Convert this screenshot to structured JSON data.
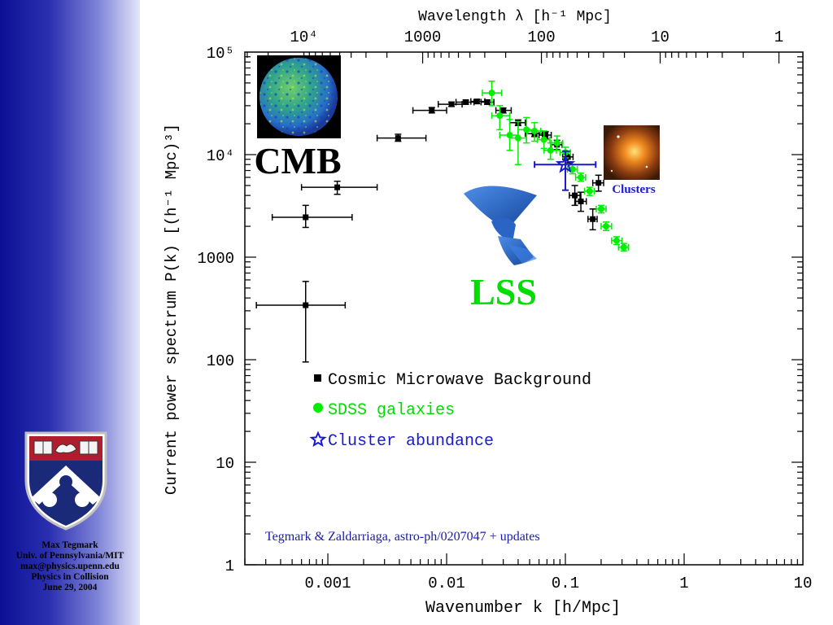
{
  "sidebar": {
    "footer_lines": [
      "Max Tegmark",
      "Univ. of Pennsylvania/MIT",
      "max@physics.upenn.edu",
      "Physics in Collision",
      "June 29, 2004"
    ]
  },
  "chart_data": {
    "type": "scatter",
    "xlabel": "Wavenumber k [h/Mpc]",
    "ylabel": "Current power spectrum P(k) [(h⁻¹ Mpc)³]",
    "top_xlabel": "Wavelength λ [h⁻¹ Mpc]",
    "xscale": "log",
    "yscale": "log",
    "xlim": [
      0.0002,
      10
    ],
    "ylim": [
      1,
      100000
    ],
    "x_ticks": [
      {
        "value": 0.001,
        "label": "0.001"
      },
      {
        "value": 0.01,
        "label": "0.01"
      },
      {
        "value": 0.1,
        "label": "0.1"
      },
      {
        "value": 1,
        "label": "1"
      },
      {
        "value": 10,
        "label": "10"
      }
    ],
    "y_ticks": [
      {
        "value": 1,
        "label": "1"
      },
      {
        "value": 10,
        "label": "10"
      },
      {
        "value": 100,
        "label": "100"
      },
      {
        "value": 1000,
        "label": "1000"
      },
      {
        "value": 10000,
        "label": "10⁴"
      },
      {
        "value": 100000,
        "label": "10⁵"
      }
    ],
    "top_ticks": [
      {
        "k": 0.000628,
        "label": "10⁴"
      },
      {
        "k": 0.00628,
        "label": "1000"
      },
      {
        "k": 0.0628,
        "label": "100"
      },
      {
        "k": 0.628,
        "label": "10"
      },
      {
        "k": 6.28,
        "label": "1"
      }
    ],
    "series": [
      {
        "name": "Cosmic Microwave Background",
        "color": "#000000",
        "marker": "square",
        "points": [
          {
            "x": 0.00065,
            "y": 340,
            "xlo": 0.00025,
            "xhi": 0.0014,
            "ylo": 95,
            "yhi": 580
          },
          {
            "x": 0.00065,
            "y": 2450,
            "xlo": 0.00034,
            "xhi": 0.0016,
            "ylo": 1950,
            "yhi": 3200
          },
          {
            "x": 0.0012,
            "y": 4800,
            "xlo": 0.0006,
            "xhi": 0.0026,
            "ylo": 4100,
            "yhi": 5500
          },
          {
            "x": 0.0039,
            "y": 14500,
            "xlo": 0.0026,
            "xhi": 0.0067,
            "ylo": 13500,
            "yhi": 15800
          },
          {
            "x": 0.0075,
            "y": 27000,
            "xlo": 0.0052,
            "xhi": 0.01,
            "ylo": 25500,
            "yhi": 28800
          },
          {
            "x": 0.011,
            "y": 31000,
            "xlo": 0.0085,
            "xhi": 0.0135,
            "ylo": 29500,
            "yhi": 32500
          },
          {
            "x": 0.0145,
            "y": 32500,
            "xlo": 0.012,
            "xhi": 0.017,
            "ylo": 31000,
            "yhi": 34000
          },
          {
            "x": 0.018,
            "y": 33000,
            "xlo": 0.016,
            "xhi": 0.021,
            "ylo": 31500,
            "yhi": 34500
          },
          {
            "x": 0.022,
            "y": 32500,
            "xlo": 0.0195,
            "xhi": 0.025,
            "ylo": 31000,
            "yhi": 34000
          },
          {
            "x": 0.03,
            "y": 27000,
            "xlo": 0.026,
            "xhi": 0.035,
            "ylo": 25500,
            "yhi": 28500
          },
          {
            "x": 0.04,
            "y": 20500,
            "xlo": 0.034,
            "xhi": 0.046,
            "ylo": 19200,
            "yhi": 21800
          },
          {
            "x": 0.055,
            "y": 16000,
            "xlo": 0.046,
            "xhi": 0.064,
            "ylo": 15000,
            "yhi": 17000
          },
          {
            "x": 0.068,
            "y": 15500,
            "xlo": 0.06,
            "xhi": 0.076,
            "ylo": 14300,
            "yhi": 16700
          },
          {
            "x": 0.085,
            "y": 12500,
            "xlo": 0.076,
            "xhi": 0.094,
            "ylo": 11200,
            "yhi": 13800
          },
          {
            "x": 0.105,
            "y": 9500,
            "xlo": 0.095,
            "xhi": 0.116,
            "ylo": 8300,
            "yhi": 10800
          },
          {
            "x": 0.12,
            "y": 4000,
            "xlo": 0.108,
            "xhi": 0.133,
            "ylo": 3200,
            "yhi": 5000
          },
          {
            "x": 0.135,
            "y": 3500,
            "xlo": 0.122,
            "xhi": 0.15,
            "ylo": 2800,
            "yhi": 4300
          },
          {
            "x": 0.17,
            "y": 2350,
            "xlo": 0.155,
            "xhi": 0.185,
            "ylo": 1850,
            "yhi": 2950
          },
          {
            "x": 0.19,
            "y": 5300,
            "xlo": 0.17,
            "xhi": 0.21,
            "ylo": 4400,
            "yhi": 6300
          }
        ]
      },
      {
        "name": "SDSS galaxies",
        "color": "#00ee00",
        "marker": "circle",
        "points": [
          {
            "x": 0.024,
            "y": 40000,
            "xlo": 0.02,
            "xhi": 0.029,
            "ylo": 30000,
            "yhi": 52000
          },
          {
            "x": 0.028,
            "y": 24000,
            "xlo": 0.024,
            "xhi": 0.034,
            "ylo": 17500,
            "yhi": 30000
          },
          {
            "x": 0.034,
            "y": 15500,
            "xlo": 0.028,
            "xhi": 0.04,
            "ylo": 11000,
            "yhi": 22000
          },
          {
            "x": 0.04,
            "y": 14500,
            "xlo": 0.034,
            "xhi": 0.047,
            "ylo": 8000,
            "yhi": 21000
          },
          {
            "x": 0.047,
            "y": 17500,
            "xlo": 0.04,
            "xhi": 0.055,
            "ylo": 13000,
            "yhi": 23000
          },
          {
            "x": 0.055,
            "y": 17000,
            "xlo": 0.048,
            "xhi": 0.062,
            "ylo": 13500,
            "yhi": 20500
          },
          {
            "x": 0.066,
            "y": 14000,
            "xlo": 0.058,
            "xhi": 0.074,
            "ylo": 11500,
            "yhi": 17000
          },
          {
            "x": 0.075,
            "y": 11000,
            "xlo": 0.066,
            "xhi": 0.084,
            "ylo": 9000,
            "yhi": 13000
          },
          {
            "x": 0.085,
            "y": 13000,
            "xlo": 0.076,
            "xhi": 0.095,
            "ylo": 11000,
            "yhi": 15200
          },
          {
            "x": 0.1,
            "y": 10500,
            "xlo": 0.09,
            "xhi": 0.11,
            "ylo": 9300,
            "yhi": 11800
          },
          {
            "x": 0.115,
            "y": 7200,
            "xlo": 0.104,
            "xhi": 0.126,
            "ylo": 6500,
            "yhi": 8000
          },
          {
            "x": 0.135,
            "y": 6000,
            "xlo": 0.122,
            "xhi": 0.148,
            "ylo": 5500,
            "yhi": 6600
          },
          {
            "x": 0.16,
            "y": 4400,
            "xlo": 0.145,
            "xhi": 0.175,
            "ylo": 4000,
            "yhi": 4800
          },
          {
            "x": 0.2,
            "y": 2950,
            "xlo": 0.182,
            "xhi": 0.22,
            "ylo": 2700,
            "yhi": 3200
          },
          {
            "x": 0.22,
            "y": 2000,
            "xlo": 0.2,
            "xhi": 0.245,
            "ylo": 1820,
            "yhi": 2200
          },
          {
            "x": 0.27,
            "y": 1450,
            "xlo": 0.245,
            "xhi": 0.3,
            "ylo": 1330,
            "yhi": 1580
          },
          {
            "x": 0.31,
            "y": 1250,
            "xlo": 0.28,
            "xhi": 0.34,
            "ylo": 1150,
            "yhi": 1360
          }
        ]
      },
      {
        "name": "Cluster abundance",
        "color": "#1a1acc",
        "marker": "star",
        "points": [
          {
            "x": 0.1,
            "y": 8000,
            "xlo": 0.055,
            "xhi": 0.18,
            "ylo": 4500,
            "yhi": 10800
          }
        ]
      }
    ],
    "legend": {
      "placement": "lower-center"
    },
    "annotations": {
      "cmb": "CMB",
      "lss": "LSS",
      "clusters": "Clusters",
      "citation": "Tegmark & Zaldarriaga, astro-ph/0207047 + updates"
    },
    "colors": {
      "cmb_label": "#000000",
      "lss_label": "#00dd00",
      "clusters_label": "#1a1acc",
      "citation": "#1a1aaa",
      "lss_glyph": "#1f5fcc"
    }
  }
}
